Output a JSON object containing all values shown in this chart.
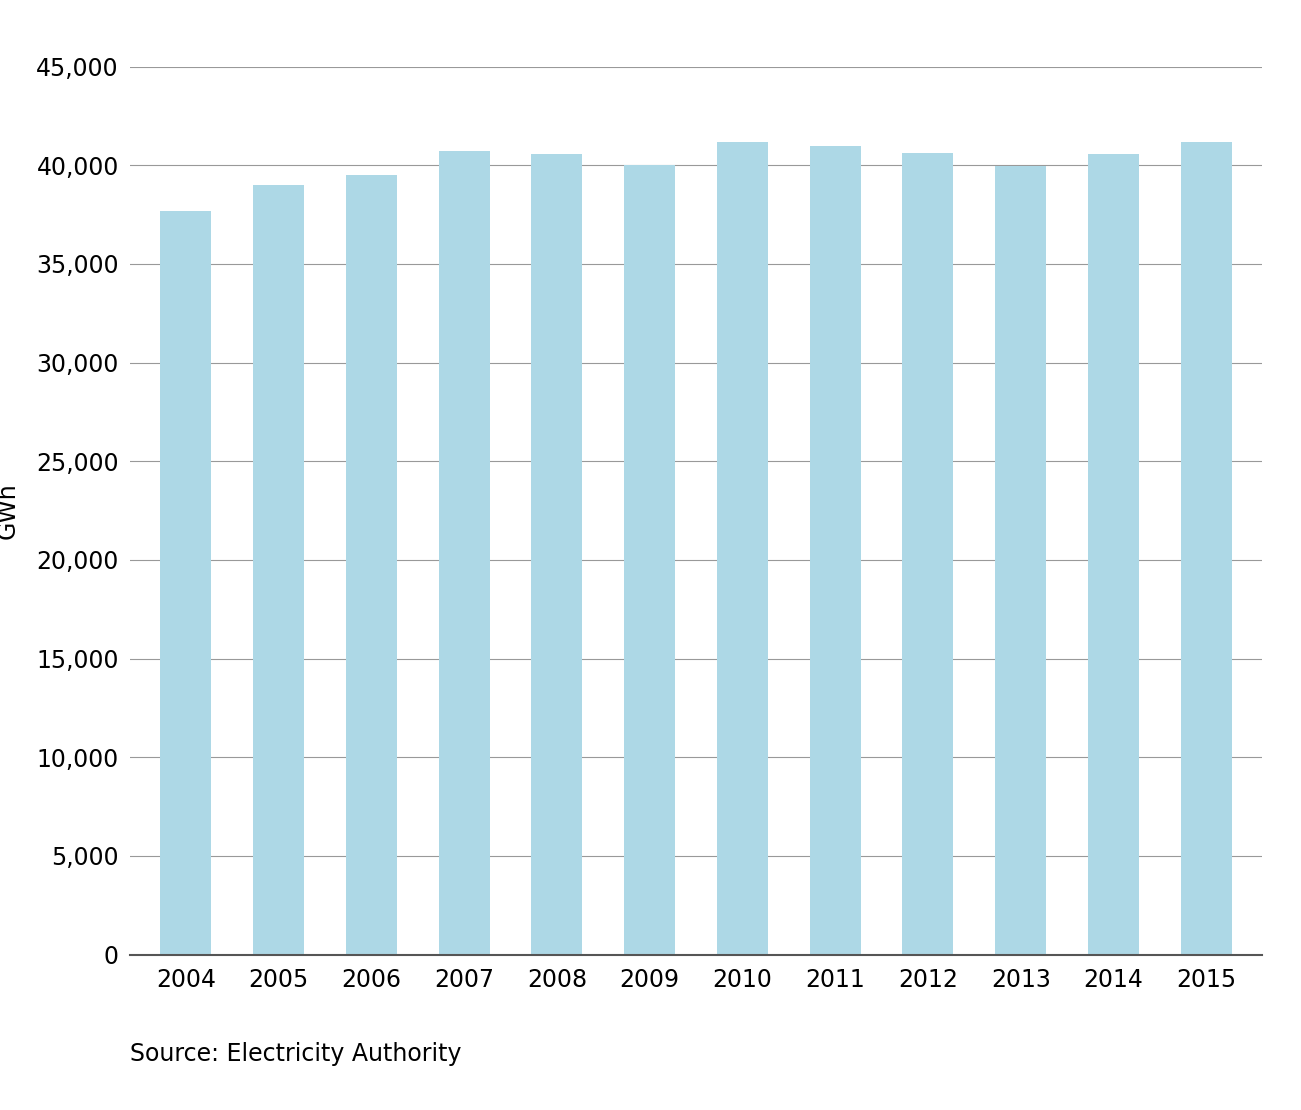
{
  "years": [
    "2004",
    "2005",
    "2006",
    "2007",
    "2008",
    "2009",
    "2010",
    "2011",
    "2012",
    "2013",
    "2014",
    "2015"
  ],
  "values": [
    37700,
    39000,
    39500,
    40700,
    40550,
    40000,
    41200,
    41000,
    40600,
    39950,
    40550,
    41200
  ],
  "bar_color": "#add8e6",
  "ylabel": "GWh",
  "ylim": [
    0,
    45000
  ],
  "yticks": [
    0,
    5000,
    10000,
    15000,
    20000,
    25000,
    30000,
    35000,
    40000,
    45000
  ],
  "source_text": "Source: Electricity Authority",
  "background_color": "#ffffff",
  "grid_color": "#999999",
  "axis_line_color": "#555555",
  "bar_edge_color": "none",
  "bar_width": 0.55,
  "ylabel_fontsize": 17,
  "tick_fontsize": 17,
  "source_fontsize": 17
}
